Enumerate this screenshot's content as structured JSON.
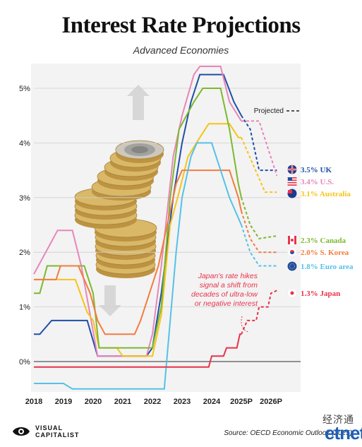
{
  "title": "Interest Rate Projections",
  "subtitle": "Advanced Economies",
  "source": "Source: OECD Economic Outlook (2025)",
  "brand": {
    "line1": "VISUAL",
    "line2": "CAPITALIST"
  },
  "watermark": {
    "cn": "经济通",
    "logo_a": "et",
    "logo_b": "net"
  },
  "chart_data": {
    "type": "line",
    "x": [
      2018,
      2019,
      2020,
      2021,
      2022,
      2023,
      2024,
      "2025P",
      "2026P"
    ],
    "x_ticks": [
      "2018",
      "2019",
      "2020",
      "2021",
      "2022",
      "2023",
      "2024",
      "2025P",
      "2026P"
    ],
    "y_ticks": [
      "0%",
      "1%",
      "2%",
      "3%",
      "4%",
      "5%"
    ],
    "ylim": [
      -0.5,
      5.5
    ],
    "grid": true,
    "projected_label": "Projected",
    "annotation": "Japan's rate hikes signal a shift from decades of ultra-low or negative interest",
    "series": [
      {
        "name": "UK",
        "label": "3.5% UK",
        "flag": "uk-flag",
        "color": "#1e4fa8",
        "points": [
          [
            2018.0,
            0.5
          ],
          [
            2018.2,
            0.5
          ],
          [
            2018.6,
            0.75
          ],
          [
            2019.8,
            0.75
          ],
          [
            2020.15,
            0.1
          ],
          [
            2021.8,
            0.1
          ],
          [
            2022.0,
            0.25
          ],
          [
            2022.3,
            1.25
          ],
          [
            2022.7,
            3.0
          ],
          [
            2023.0,
            4.0
          ],
          [
            2023.3,
            4.75
          ],
          [
            2023.6,
            5.25
          ],
          [
            2024.4,
            5.25
          ],
          [
            2024.75,
            4.75
          ],
          [
            2025.0,
            4.5
          ]
        ],
        "projected": [
          [
            2025.0,
            4.5
          ],
          [
            2025.3,
            4.25
          ],
          [
            2025.6,
            3.5
          ],
          [
            2025.9,
            3.5
          ],
          [
            2026.2,
            3.5
          ]
        ],
        "end": 3.5
      },
      {
        "name": "U.S.",
        "label": "3.4% U.S.",
        "flag": "us-flag",
        "color": "#e886b9",
        "points": [
          [
            2018.0,
            1.6
          ],
          [
            2018.5,
            2.1
          ],
          [
            2018.8,
            2.4
          ],
          [
            2019.3,
            2.4
          ],
          [
            2019.6,
            1.75
          ],
          [
            2020.15,
            0.1
          ],
          [
            2021.8,
            0.1
          ],
          [
            2022.0,
            0.5
          ],
          [
            2022.3,
            1.75
          ],
          [
            2022.7,
            3.75
          ],
          [
            2023.0,
            4.5
          ],
          [
            2023.4,
            5.25
          ],
          [
            2023.6,
            5.4
          ],
          [
            2024.3,
            5.4
          ],
          [
            2024.6,
            4.75
          ],
          [
            2025.0,
            4.4
          ]
        ],
        "projected": [
          [
            2025.0,
            4.4
          ],
          [
            2025.6,
            4.4
          ],
          [
            2025.9,
            3.9
          ],
          [
            2026.2,
            3.4
          ]
        ],
        "end": 3.4
      },
      {
        "name": "Australia",
        "label": "3.1% Australia",
        "flag": "au-flag",
        "color": "#f5c518",
        "points": [
          [
            2018.0,
            1.5
          ],
          [
            2019.4,
            1.5
          ],
          [
            2019.8,
            0.9
          ],
          [
            2020.0,
            0.75
          ],
          [
            2020.2,
            0.25
          ],
          [
            2020.8,
            0.25
          ],
          [
            2021.0,
            0.1
          ],
          [
            2022.0,
            0.1
          ],
          [
            2022.3,
            0.85
          ],
          [
            2022.6,
            2.5
          ],
          [
            2022.9,
            3.1
          ],
          [
            2023.2,
            3.75
          ],
          [
            2023.6,
            4.1
          ],
          [
            2023.9,
            4.35
          ],
          [
            2024.6,
            4.35
          ],
          [
            2024.9,
            4.1
          ],
          [
            2025.0,
            4.1
          ]
        ],
        "projected": [
          [
            2025.0,
            4.1
          ],
          [
            2025.4,
            3.6
          ],
          [
            2025.8,
            3.1
          ],
          [
            2026.2,
            3.1
          ]
        ],
        "end": 3.1
      },
      {
        "name": "Canada",
        "label": "2.3% Canada",
        "flag": "ca-flag",
        "color": "#7db82e",
        "points": [
          [
            2018.0,
            1.25
          ],
          [
            2018.2,
            1.25
          ],
          [
            2018.45,
            1.75
          ],
          [
            2019.7,
            1.75
          ],
          [
            2020.0,
            1.25
          ],
          [
            2020.2,
            0.25
          ],
          [
            2022.0,
            0.25
          ],
          [
            2022.3,
            1.0
          ],
          [
            2022.6,
            3.0
          ],
          [
            2022.9,
            4.25
          ],
          [
            2023.4,
            4.75
          ],
          [
            2023.7,
            5.0
          ],
          [
            2024.3,
            5.0
          ],
          [
            2024.6,
            4.25
          ],
          [
            2024.9,
            3.25
          ],
          [
            2025.0,
            3.0
          ]
        ],
        "projected": [
          [
            2025.0,
            3.0
          ],
          [
            2025.3,
            2.5
          ],
          [
            2025.6,
            2.25
          ],
          [
            2026.2,
            2.3
          ]
        ],
        "end": 2.3
      },
      {
        "name": "S. Korea",
        "label": "2.0% S. Korea",
        "flag": "kr-flag",
        "color": "#f47b3e",
        "points": [
          [
            2018.0,
            1.5
          ],
          [
            2018.75,
            1.5
          ],
          [
            2018.9,
            1.75
          ],
          [
            2019.5,
            1.75
          ],
          [
            2019.9,
            1.25
          ],
          [
            2020.15,
            0.75
          ],
          [
            2020.4,
            0.5
          ],
          [
            2021.4,
            0.5
          ],
          [
            2021.6,
            0.75
          ],
          [
            2021.9,
            1.25
          ],
          [
            2022.2,
            1.75
          ],
          [
            2022.5,
            2.5
          ],
          [
            2022.8,
            3.25
          ],
          [
            2023.0,
            3.5
          ],
          [
            2024.6,
            3.5
          ],
          [
            2024.9,
            3.0
          ],
          [
            2025.0,
            2.75
          ]
        ],
        "projected": [
          [
            2025.0,
            2.75
          ],
          [
            2025.3,
            2.25
          ],
          [
            2025.6,
            2.0
          ],
          [
            2026.2,
            2.0
          ]
        ],
        "end": 2.0
      },
      {
        "name": "Euro area",
        "label": "1.8% Euro area",
        "flag": "eu-flag",
        "color": "#55c1e8",
        "points": [
          [
            2018.0,
            -0.4
          ],
          [
            2019.0,
            -0.4
          ],
          [
            2019.3,
            -0.5
          ],
          [
            2022.4,
            -0.5
          ],
          [
            2022.6,
            0.75
          ],
          [
            2022.8,
            2.0
          ],
          [
            2023.0,
            3.0
          ],
          [
            2023.3,
            3.75
          ],
          [
            2023.5,
            4.0
          ],
          [
            2024.0,
            4.0
          ],
          [
            2024.3,
            3.5
          ],
          [
            2024.6,
            3.0
          ],
          [
            2025.0,
            2.5
          ]
        ],
        "projected": [
          [
            2025.0,
            2.5
          ],
          [
            2025.3,
            2.0
          ],
          [
            2025.6,
            1.75
          ],
          [
            2026.2,
            1.75
          ]
        ],
        "end": 1.8
      },
      {
        "name": "Japan",
        "label": "1.3% Japan",
        "flag": "jp-flag",
        "color": "#e8334a",
        "points": [
          [
            2018.0,
            -0.1
          ],
          [
            2023.9,
            -0.1
          ],
          [
            2024.0,
            0.1
          ],
          [
            2024.4,
            0.1
          ],
          [
            2024.5,
            0.25
          ],
          [
            2024.85,
            0.25
          ],
          [
            2024.95,
            0.5
          ],
          [
            2025.0,
            0.5
          ]
        ],
        "projected": [
          [
            2025.0,
            0.5
          ],
          [
            2025.2,
            0.75
          ],
          [
            2025.5,
            0.75
          ],
          [
            2025.6,
            1.0
          ],
          [
            2025.9,
            1.0
          ],
          [
            2026.0,
            1.25
          ],
          [
            2026.2,
            1.3
          ]
        ],
        "end": 1.3
      }
    ]
  }
}
